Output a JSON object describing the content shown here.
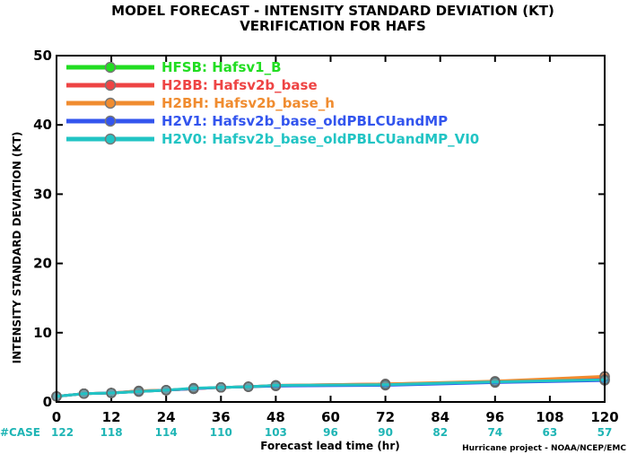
{
  "chart_data": {
    "type": "line",
    "title": "MODEL FORECAST - INTENSITY STANDARD DEVIATION (KT)",
    "subtitle": "VERIFICATION FOR HAFS",
    "xlabel": "Forecast lead time (hr)",
    "ylabel": "INTENSITY STANDARD DEVIATION (KT)",
    "xlim": [
      0,
      120
    ],
    "ylim": [
      0,
      50
    ],
    "xticks": [
      0,
      12,
      24,
      36,
      48,
      60,
      72,
      84,
      96,
      108,
      120
    ],
    "yticks": [
      0,
      10,
      20,
      30,
      40,
      50
    ],
    "legend_position": "top-left",
    "case_label": "#CASE",
    "case_x": [
      0,
      12,
      24,
      36,
      48,
      60,
      72,
      84,
      96,
      108,
      120
    ],
    "cases": [
      122,
      118,
      114,
      110,
      103,
      96,
      90,
      82,
      74,
      63,
      57
    ],
    "credit": "Hurricane project - NOAA/NCEP/EMC",
    "series": [
      {
        "name": "HFSB: Hafsv1_B",
        "color": "#22dd22",
        "x": [
          0,
          6,
          12,
          18,
          24,
          30,
          36,
          42,
          48,
          72,
          96,
          120
        ],
        "y": [
          0.8,
          1.2,
          1.3,
          1.5,
          1.7,
          1.9,
          2.1,
          2.2,
          2.3,
          2.5,
          2.9,
          3.3
        ]
      },
      {
        "name": "H2BB: Hafsv2b_base",
        "color": "#ee4444",
        "x": [
          0,
          6,
          12,
          18,
          24,
          30,
          36,
          42,
          48,
          72,
          96,
          120
        ],
        "y": [
          0.8,
          1.2,
          1.3,
          1.6,
          1.7,
          1.9,
          2.1,
          2.2,
          2.4,
          2.6,
          2.9,
          3.6
        ]
      },
      {
        "name": "H2BH: Hafsv2b_base_h",
        "color": "#f08c30",
        "x": [
          0,
          6,
          12,
          18,
          24,
          30,
          36,
          42,
          48,
          72,
          96,
          120
        ],
        "y": [
          0.8,
          1.2,
          1.3,
          1.6,
          1.7,
          1.9,
          2.1,
          2.2,
          2.4,
          2.6,
          3.0,
          3.7
        ]
      },
      {
        "name": "H2V1: Hafsv2b_base_oldPBLCUandMP",
        "color": "#3355ee",
        "x": [
          0,
          6,
          12,
          18,
          24,
          30,
          36,
          42,
          48,
          72,
          96,
          120
        ],
        "y": [
          0.8,
          1.2,
          1.3,
          1.5,
          1.7,
          1.9,
          2.1,
          2.2,
          2.3,
          2.4,
          2.8,
          3.1
        ]
      },
      {
        "name": "H2V0: Hafsv2b_base_oldPBLCUandMP_VI0",
        "color": "#22c4c4",
        "x": [
          0,
          6,
          12,
          18,
          24,
          30,
          36,
          42,
          48,
          72,
          96,
          120
        ],
        "y": [
          0.8,
          1.2,
          1.3,
          1.5,
          1.7,
          2.0,
          2.1,
          2.2,
          2.4,
          2.5,
          2.9,
          3.2
        ]
      }
    ]
  }
}
